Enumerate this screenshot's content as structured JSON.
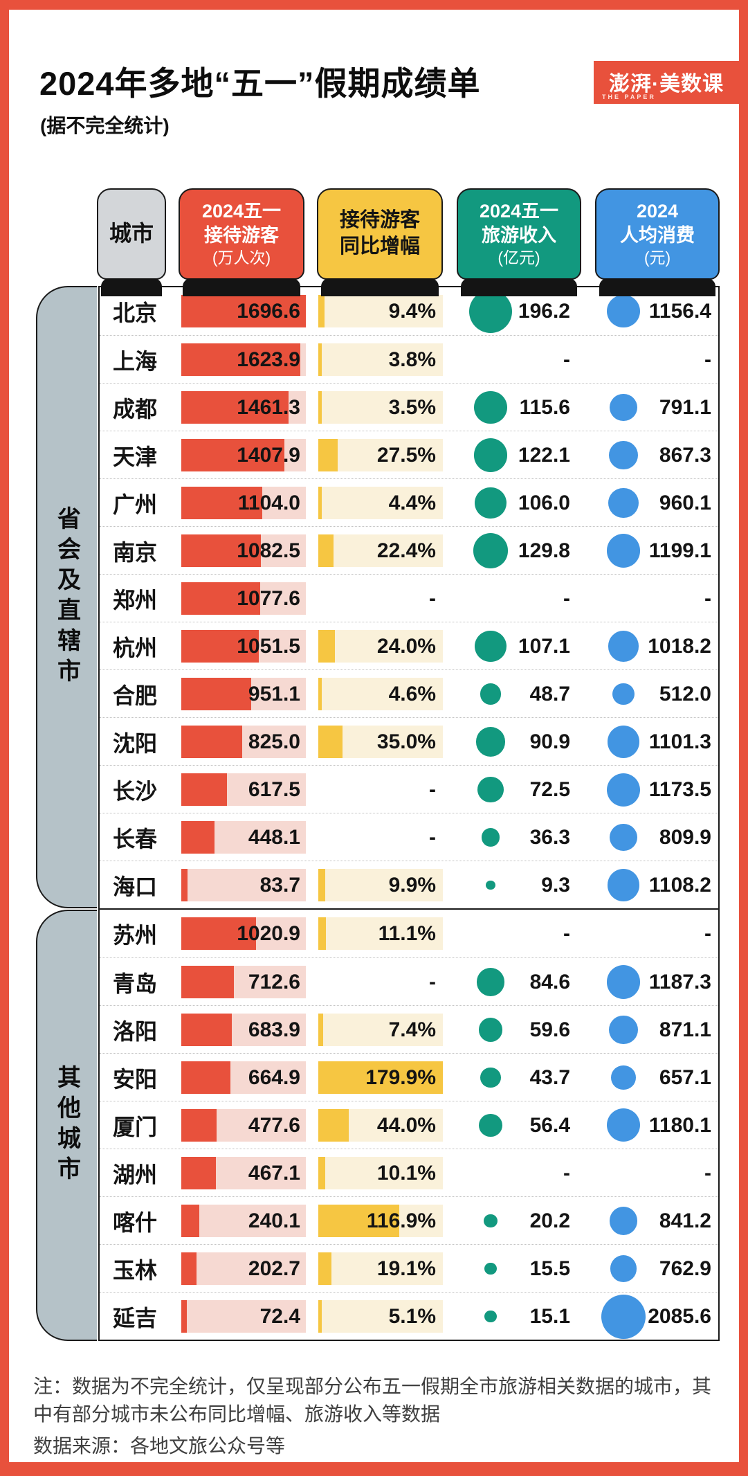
{
  "title": "2024年多地“五一”假期成绩单",
  "subtitle": "(据不完全统计)",
  "logo": {
    "text": "澎湃·美数课",
    "subtext": "THE PAPER",
    "bg": "#e8513c"
  },
  "table": {
    "columns": [
      {
        "id": "city",
        "lines": [
          "城市"
        ],
        "unit": null
      },
      {
        "id": "visitors",
        "lines": [
          "2024五一",
          "接待游客"
        ],
        "unit": "(万人次)"
      },
      {
        "id": "growth",
        "lines": [
          "接待游客",
          "同比增幅"
        ],
        "unit": null
      },
      {
        "id": "revenue",
        "lines": [
          "2024五一",
          "旅游收入"
        ],
        "unit": "(亿元)"
      },
      {
        "id": "spending",
        "lines": [
          "2024",
          "人均消费"
        ],
        "unit": "(元)"
      }
    ],
    "missing_placeholder": "-"
  },
  "scales": {
    "visitors": {
      "max_value": 1696.6
    },
    "growth": {
      "max_value": 179.9
    },
    "revenue": {
      "max_value": 196.2,
      "max_diameter": 62
    },
    "spending": {
      "max_value": 2085.6,
      "max_diameter": 64
    }
  },
  "colors": {
    "frame": "#e8513c",
    "visitors_bar": "#e8513c",
    "visitors_track": "#f6d9d2",
    "growth_bar": "#f6c642",
    "growth_track": "#faf1da",
    "revenue_circle": "#12997f",
    "spending_circle": "#4295e2",
    "city_tab": "#d3d6d9",
    "bracket": "#b5c2c8"
  },
  "chart_data": {
    "type": "table",
    "title": "2024年多地“五一”假期成绩单",
    "columns": [
      "城市",
      "2024五一接待游客(万人次)",
      "接待游客同比增幅",
      "2024五一旅游收入(亿元)",
      "2024人均消费(元)"
    ],
    "groups": [
      {
        "label": "省会及直辖市",
        "rows": [
          {
            "city": "北京",
            "visitors": "1696.6",
            "growth": "9.4%",
            "revenue": "196.2",
            "spending": "1156.4"
          },
          {
            "city": "上海",
            "visitors": "1623.9",
            "growth": "3.8%",
            "revenue": null,
            "spending": null
          },
          {
            "city": "成都",
            "visitors": "1461.3",
            "growth": "3.5%",
            "revenue": "115.6",
            "spending": "791.1"
          },
          {
            "city": "天津",
            "visitors": "1407.9",
            "growth": "27.5%",
            "revenue": "122.1",
            "spending": "867.3"
          },
          {
            "city": "广州",
            "visitors": "1104.0",
            "growth": "4.4%",
            "revenue": "106.0",
            "spending": "960.1"
          },
          {
            "city": "南京",
            "visitors": "1082.5",
            "growth": "22.4%",
            "revenue": "129.8",
            "spending": "1199.1"
          },
          {
            "city": "郑州",
            "visitors": "1077.6",
            "growth": null,
            "revenue": null,
            "spending": null
          },
          {
            "city": "杭州",
            "visitors": "1051.5",
            "growth": "24.0%",
            "revenue": "107.1",
            "spending": "1018.2"
          },
          {
            "city": "合肥",
            "visitors": "951.1",
            "growth": "4.6%",
            "revenue": "48.7",
            "spending": "512.0"
          },
          {
            "city": "沈阳",
            "visitors": "825.0",
            "growth": "35.0%",
            "revenue": "90.9",
            "spending": "1101.3"
          },
          {
            "city": "长沙",
            "visitors": "617.5",
            "growth": null,
            "revenue": "72.5",
            "spending": "1173.5"
          },
          {
            "city": "长春",
            "visitors": "448.1",
            "growth": null,
            "revenue": "36.3",
            "spending": "809.9"
          },
          {
            "city": "海口",
            "visitors": "83.7",
            "growth": "9.9%",
            "revenue": "9.3",
            "spending": "1108.2"
          }
        ]
      },
      {
        "label": "其他城市",
        "rows": [
          {
            "city": "苏州",
            "visitors": "1020.9",
            "growth": "11.1%",
            "revenue": null,
            "spending": null
          },
          {
            "city": "青岛",
            "visitors": "712.6",
            "growth": null,
            "revenue": "84.6",
            "spending": "1187.3"
          },
          {
            "city": "洛阳",
            "visitors": "683.9",
            "growth": "7.4%",
            "revenue": "59.6",
            "spending": "871.1"
          },
          {
            "city": "安阳",
            "visitors": "664.9",
            "growth": "179.9%",
            "revenue": "43.7",
            "spending": "657.1"
          },
          {
            "city": "厦门",
            "visitors": "477.6",
            "growth": "44.0%",
            "revenue": "56.4",
            "spending": "1180.1"
          },
          {
            "city": "湖州",
            "visitors": "467.1",
            "growth": "10.1%",
            "revenue": null,
            "spending": null
          },
          {
            "city": "喀什",
            "visitors": "240.1",
            "growth": "116.9%",
            "revenue": "20.2",
            "spending": "841.2"
          },
          {
            "city": "玉林",
            "visitors": "202.7",
            "growth": "19.1%",
            "revenue": "15.5",
            "spending": "762.9"
          },
          {
            "city": "延吉",
            "visitors": "72.4",
            "growth": "5.1%",
            "revenue": "15.1",
            "spending": "2085.6"
          }
        ]
      }
    ]
  },
  "notes": {
    "note": "注：数据为不完全统计，仅呈现部分公布五一假期全市旅游相关数据的城市，其中有部分城市未公布同比增幅、旅游收入等数据",
    "source": "数据来源：各地文旅公众号等"
  }
}
